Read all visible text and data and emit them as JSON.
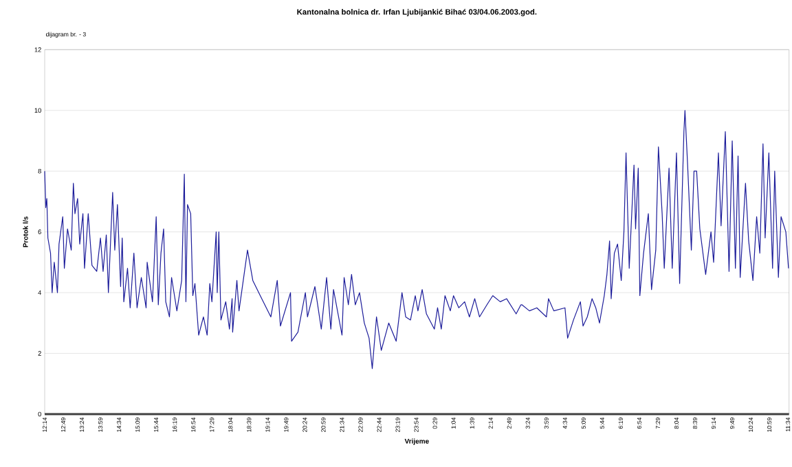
{
  "chart_data": {
    "type": "line",
    "title": "Kantonalna bolnica dr. Irfan Ljubijankić Bihać 03/04.06.2003.god.",
    "xlabel": "Vrijeme",
    "ylabel": "Protok l/s",
    "annotations": [
      "dijagram br. - 3"
    ],
    "series": [
      {
        "color": "#1c1c9a",
        "x": [
          "2003-06-03T12:14",
          "2003-06-03T12:16",
          "2003-06-03T12:18",
          "2003-06-03T12:20",
          "2003-06-03T12:25",
          "2003-06-03T12:28",
          "2003-06-03T12:32",
          "2003-06-03T12:38",
          "2003-06-03T12:41",
          "2003-06-03T12:48",
          "2003-06-03T12:51",
          "2003-06-03T12:57",
          "2003-06-03T13:04",
          "2003-06-03T13:08",
          "2003-06-03T13:11",
          "2003-06-03T13:16",
          "2003-06-03T13:20",
          "2003-06-03T13:26",
          "2003-06-03T13:29",
          "2003-06-03T13:36",
          "2003-06-03T13:43",
          "2003-06-03T13:52",
          "2003-06-03T13:59",
          "2003-06-03T14:04",
          "2003-06-03T14:10",
          "2003-06-03T14:14",
          "2003-06-03T14:22",
          "2003-06-03T14:26",
          "2003-06-03T14:31",
          "2003-06-03T14:37",
          "2003-06-03T14:40",
          "2003-06-03T14:43",
          "2003-06-03T14:50",
          "2003-06-03T14:55",
          "2003-06-03T15:02",
          "2003-06-03T15:08",
          "2003-06-03T15:16",
          "2003-06-03T15:25",
          "2003-06-03T15:27",
          "2003-06-03T15:37",
          "2003-06-03T15:44",
          "2003-06-03T15:48",
          "2003-06-03T15:53",
          "2003-06-03T15:58",
          "2003-06-03T16:02",
          "2003-06-03T16:09",
          "2003-06-03T16:13",
          "2003-06-03T16:23",
          "2003-06-03T16:32",
          "2003-06-03T16:37",
          "2003-06-03T16:40",
          "2003-06-03T16:43",
          "2003-06-03T16:49",
          "2003-06-03T16:53",
          "2003-06-03T16:57",
          "2003-06-03T17:04",
          "2003-06-03T17:13",
          "2003-06-03T17:20",
          "2003-06-03T17:25",
          "2003-06-03T17:29",
          "2003-06-03T17:37",
          "2003-06-03T17:39",
          "2003-06-03T17:42",
          "2003-06-03T17:46",
          "2003-06-03T17:55",
          "2003-06-03T18:02",
          "2003-06-03T18:07",
          "2003-06-03T18:08",
          "2003-06-03T18:16",
          "2003-06-03T18:20",
          "2003-06-03T18:36",
          "2003-06-03T18:46",
          "2003-06-03T19:00",
          "2003-06-03T19:20",
          "2003-06-03T19:32",
          "2003-06-03T19:38",
          "2003-06-03T19:57",
          "2003-06-03T19:59",
          "2003-06-03T20:11",
          "2003-06-03T20:25",
          "2003-06-03T20:29",
          "2003-06-03T20:43",
          "2003-06-03T20:55",
          "2003-06-03T21:05",
          "2003-06-03T21:13",
          "2003-06-03T21:18",
          "2003-06-03T21:34",
          "2003-06-03T21:38",
          "2003-06-03T21:46",
          "2003-06-03T21:52",
          "2003-06-03T21:59",
          "2003-06-03T22:07",
          "2003-06-03T22:16",
          "2003-06-03T22:25",
          "2003-06-03T22:31",
          "2003-06-03T22:39",
          "2003-06-03T22:48",
          "2003-06-03T23:02",
          "2003-06-03T23:16",
          "2003-06-03T23:27",
          "2003-06-03T23:34",
          "2003-06-03T23:43",
          "2003-06-03T23:52",
          "2003-06-03T23:57",
          "2003-06-04T00:05",
          "2003-06-04T00:13",
          "2003-06-04T00:28",
          "2003-06-04T00:34",
          "2003-06-04T00:41",
          "2003-06-04T00:48",
          "2003-06-04T00:58",
          "2003-06-04T01:04",
          "2003-06-04T01:14",
          "2003-06-04T01:25",
          "2003-06-04T01:34",
          "2003-06-04T01:44",
          "2003-06-04T01:53",
          "2003-06-04T02:07",
          "2003-06-04T02:18",
          "2003-06-04T02:32",
          "2003-06-04T02:44",
          "2003-06-04T03:02",
          "2003-06-04T03:11",
          "2003-06-04T03:13",
          "2003-06-04T03:27",
          "2003-06-04T03:41",
          "2003-06-04T03:59",
          "2003-06-04T04:03",
          "2003-06-04T04:13",
          "2003-06-04T04:34",
          "2003-06-04T04:39",
          "2003-06-04T04:50",
          "2003-06-04T05:03",
          "2003-06-04T05:08",
          "2003-06-04T05:16",
          "2003-06-04T05:25",
          "2003-06-04T05:32",
          "2003-06-04T05:39",
          "2003-06-04T05:48",
          "2003-06-04T05:53",
          "2003-06-04T05:58",
          "2003-06-04T06:01",
          "2003-06-04T06:07",
          "2003-06-04T06:13",
          "2003-06-04T06:20",
          "2003-06-04T06:25",
          "2003-06-04T06:29",
          "2003-06-04T06:35",
          "2003-06-04T06:44",
          "2003-06-04T06:47",
          "2003-06-04T06:52",
          "2003-06-04T06:55",
          "2003-06-04T07:02",
          "2003-06-04T07:11",
          "2003-06-04T07:17",
          "2003-06-04T07:25",
          "2003-06-04T07:30",
          "2003-06-04T07:37",
          "2003-06-04T07:41",
          "2003-06-04T07:50",
          "2003-06-04T07:56",
          "2003-06-04T08:04",
          "2003-06-04T08:10",
          "2003-06-04T08:18",
          "2003-06-04T08:20",
          "2003-06-04T08:25",
          "2003-06-04T08:32",
          "2003-06-04T08:37",
          "2003-06-04T08:42",
          "2003-06-04T08:48",
          "2003-06-04T08:59",
          "2003-06-04T09:09",
          "2003-06-04T09:14",
          "2003-06-04T09:23",
          "2003-06-04T09:28",
          "2003-06-04T09:36",
          "2003-06-04T09:43",
          "2003-06-04T09:49",
          "2003-06-04T09:55",
          "2003-06-04T10:00",
          "2003-06-04T10:04",
          "2003-06-04T10:14",
          "2003-06-04T10:20",
          "2003-06-04T10:28",
          "2003-06-04T10:35",
          "2003-06-04T10:41",
          "2003-06-04T10:47",
          "2003-06-04T10:51",
          "2003-06-04T10:58",
          "2003-06-04T11:05",
          "2003-06-04T11:09",
          "2003-06-04T11:16",
          "2003-06-04T11:21",
          "2003-06-04T11:30",
          "2003-06-04T11:35"
        ],
        "values": [
          8.0,
          6.8,
          7.1,
          5.8,
          5.3,
          4.0,
          5.0,
          4.0,
          5.6,
          6.5,
          4.8,
          6.1,
          5.4,
          7.6,
          6.6,
          7.1,
          5.6,
          6.6,
          4.8,
          6.6,
          4.9,
          4.7,
          5.8,
          4.7,
          5.9,
          4.0,
          7.3,
          5.4,
          6.9,
          4.2,
          5.8,
          3.7,
          4.8,
          3.5,
          5.3,
          3.5,
          4.5,
          3.5,
          5.0,
          3.7,
          6.5,
          3.6,
          5.3,
          6.1,
          3.7,
          3.2,
          4.5,
          3.4,
          4.4,
          7.9,
          3.7,
          6.9,
          6.6,
          3.9,
          4.3,
          2.6,
          3.2,
          2.6,
          4.3,
          3.7,
          6.0,
          4.0,
          6.0,
          3.1,
          3.7,
          2.8,
          3.8,
          2.7,
          4.4,
          3.4,
          5.4,
          4.4,
          3.9,
          3.2,
          4.4,
          2.9,
          4.0,
          2.4,
          2.7,
          4.0,
          3.2,
          4.2,
          2.8,
          4.5,
          2.8,
          4.1,
          2.6,
          4.5,
          3.6,
          4.6,
          3.6,
          4.0,
          3.0,
          2.5,
          1.5,
          3.2,
          2.1,
          3.0,
          2.4,
          4.0,
          3.2,
          3.1,
          3.9,
          3.4,
          4.1,
          3.3,
          2.8,
          3.5,
          2.8,
          3.9,
          3.4,
          3.9,
          3.5,
          3.7,
          3.2,
          3.8,
          3.2,
          3.6,
          3.9,
          3.7,
          3.8,
          3.3,
          3.6,
          3.6,
          3.4,
          3.5,
          3.2,
          3.8,
          3.4,
          3.5,
          2.5,
          3.1,
          3.7,
          2.9,
          3.2,
          3.8,
          3.5,
          3.0,
          3.9,
          4.6,
          5.7,
          3.8,
          5.3,
          5.6,
          4.4,
          6.0,
          8.6,
          4.8,
          8.2,
          6.1,
          8.1,
          3.9,
          5.3,
          6.6,
          4.1,
          5.4,
          8.8,
          6.6,
          4.8,
          8.1,
          4.8,
          8.6,
          4.3,
          9.3,
          10.0,
          8.2,
          5.4,
          8.0,
          8.0,
          6.1,
          4.6,
          6.0,
          5.0,
          8.6,
          6.2,
          9.3,
          4.7,
          9.0,
          4.8,
          8.5,
          4.5,
          7.6,
          5.7,
          4.4,
          6.5,
          5.3,
          8.9,
          5.8,
          8.6,
          4.8,
          8.0,
          4.5,
          6.5,
          6.0,
          4.8
        ]
      }
    ],
    "xlim": [
      "2003-06-03T12:14",
      "2003-06-04T11:36"
    ],
    "ylim": [
      0,
      12
    ],
    "xticks": [
      {
        "value": "2003-06-03T12:14",
        "label": "12:14"
      },
      {
        "value": "2003-06-03T12:49",
        "label": "12:49"
      },
      {
        "value": "2003-06-03T13:24",
        "label": "13:24"
      },
      {
        "value": "2003-06-03T13:59",
        "label": "13:59"
      },
      {
        "value": "2003-06-03T14:34",
        "label": "14:34"
      },
      {
        "value": "2003-06-03T15:09",
        "label": "15:09"
      },
      {
        "value": "2003-06-03T15:44",
        "label": "15:44"
      },
      {
        "value": "2003-06-03T16:19",
        "label": "16:19"
      },
      {
        "value": "2003-06-03T16:54",
        "label": "16:54"
      },
      {
        "value": "2003-06-03T17:29",
        "label": "17:29"
      },
      {
        "value": "2003-06-03T18:04",
        "label": "18:04"
      },
      {
        "value": "2003-06-03T18:39",
        "label": "18:39"
      },
      {
        "value": "2003-06-03T19:14",
        "label": "19:14"
      },
      {
        "value": "2003-06-03T19:49",
        "label": "19:49"
      },
      {
        "value": "2003-06-03T20:24",
        "label": "20:24"
      },
      {
        "value": "2003-06-03T20:59",
        "label": "20:59"
      },
      {
        "value": "2003-06-03T21:34",
        "label": "21:34"
      },
      {
        "value": "2003-06-03T22:09",
        "label": "22:09"
      },
      {
        "value": "2003-06-03T22:44",
        "label": "22:44"
      },
      {
        "value": "2003-06-03T23:19",
        "label": "23:19"
      },
      {
        "value": "2003-06-03T23:54",
        "label": "23:54"
      },
      {
        "value": "2003-06-04T00:29",
        "label": "0:29"
      },
      {
        "value": "2003-06-04T01:04",
        "label": "1:04"
      },
      {
        "value": "2003-06-04T01:39",
        "label": "1:39"
      },
      {
        "value": "2003-06-04T02:14",
        "label": "2:14"
      },
      {
        "value": "2003-06-04T02:49",
        "label": "2:49"
      },
      {
        "value": "2003-06-04T03:24",
        "label": "3:24"
      },
      {
        "value": "2003-06-04T03:59",
        "label": "3:59"
      },
      {
        "value": "2003-06-04T04:34",
        "label": "4:34"
      },
      {
        "value": "2003-06-04T05:09",
        "label": "5:09"
      },
      {
        "value": "2003-06-04T05:44",
        "label": "5:44"
      },
      {
        "value": "2003-06-04T06:19",
        "label": "6:19"
      },
      {
        "value": "2003-06-04T06:54",
        "label": "6:54"
      },
      {
        "value": "2003-06-04T07:29",
        "label": "7:29"
      },
      {
        "value": "2003-06-04T08:04",
        "label": "8:04"
      },
      {
        "value": "2003-06-04T08:39",
        "label": "8:39"
      },
      {
        "value": "2003-06-04T09:14",
        "label": "9:14"
      },
      {
        "value": "2003-06-04T09:49",
        "label": "9:49"
      },
      {
        "value": "2003-06-04T10:24",
        "label": "10:24"
      },
      {
        "value": "2003-06-04T10:59",
        "label": "10:59"
      },
      {
        "value": "2003-06-04T11:34",
        "label": "11:34"
      }
    ],
    "yticks": [
      0,
      2,
      4,
      6,
      8,
      10,
      12
    ],
    "grid": "y",
    "marker": "none",
    "line_style": "solid"
  }
}
